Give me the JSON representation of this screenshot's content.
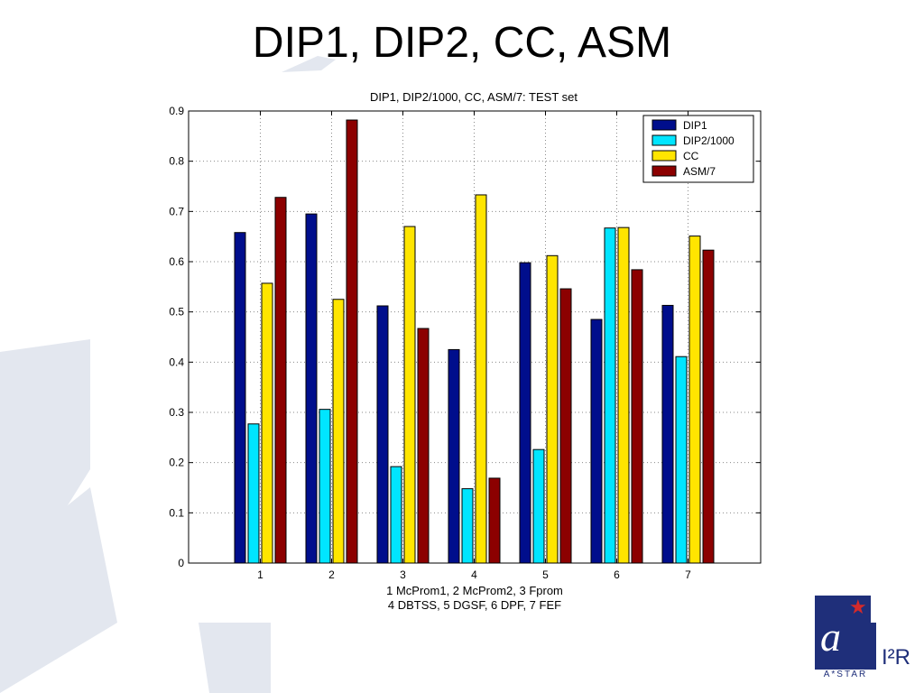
{
  "slide": {
    "title": "DIP1, DIP2, CC, ASM"
  },
  "colors": {
    "background_shape": "#e3e7ef",
    "logo_blue": "#1f2f7a",
    "logo_star": "#d42a2a"
  },
  "logo": {
    "name": "A*STAR",
    "label": "I²R"
  },
  "chart_data": {
    "type": "bar",
    "title": "DIP1, DIP2/1000, CC, ASM/7: TEST set",
    "categories": [
      "1",
      "2",
      "3",
      "4",
      "5",
      "6",
      "7"
    ],
    "xlabel_lines": [
      "1 McProm1, 2 McProm2, 3 Fprom",
      "4 DBTSS, 5 DGSF, 6 DPF, 7 FEF"
    ],
    "ylabel": "",
    "ylim": [
      0,
      0.9
    ],
    "yticks": [
      "0",
      "0.1",
      "0.2",
      "0.3",
      "0.4",
      "0.5",
      "0.6",
      "0.7",
      "0.8",
      "0.9"
    ],
    "grid": true,
    "legend_position": "top-right",
    "series": [
      {
        "name": "DIP1",
        "color": "#000e8c",
        "values": [
          0.658,
          0.695,
          0.512,
          0.425,
          0.598,
          0.485,
          0.513
        ]
      },
      {
        "name": "DIP2/1000",
        "color": "#00e5ff",
        "values": [
          0.277,
          0.306,
          0.192,
          0.148,
          0.226,
          0.667,
          0.411
        ]
      },
      {
        "name": "CC",
        "color": "#ffe500",
        "values": [
          0.557,
          0.525,
          0.67,
          0.733,
          0.612,
          0.668,
          0.651
        ]
      },
      {
        "name": "ASM/7",
        "color": "#8c0000",
        "values": [
          0.728,
          0.882,
          0.467,
          0.169,
          0.546,
          0.584,
          0.623
        ]
      }
    ]
  }
}
